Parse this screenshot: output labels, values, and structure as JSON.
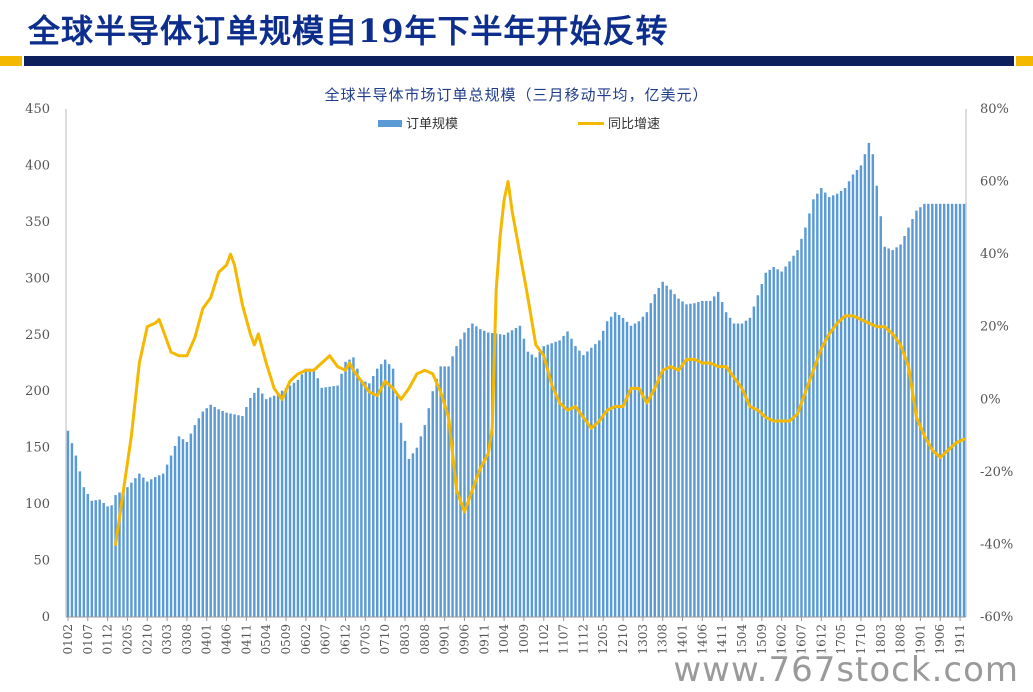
{
  "slide": {
    "title": "全球半导体订单规模自19年下半年开始反转",
    "watermark": "www.767stock.com",
    "accent_gold": "#f5b800",
    "accent_navy": "#0d1f5c"
  },
  "chart_data": {
    "type": "bar",
    "title": "全球半导体市场订单总规模（三月移动平均，亿美元）",
    "left_axis": {
      "min": 0,
      "max": 450,
      "ticks": [
        "0",
        "50",
        "100",
        "150",
        "200",
        "250",
        "300",
        "350",
        "400",
        "450"
      ]
    },
    "right_axis": {
      "min": -60,
      "max": 80,
      "ticks": [
        "-60%",
        "-40%",
        "-20%",
        "0%",
        "20%",
        "40%",
        "60%",
        "80%"
      ]
    },
    "x_tick_labels": [
      "0102",
      "0107",
      "0112",
      "0205",
      "0210",
      "0303",
      "0308",
      "0401",
      "0406",
      "0411",
      "0504",
      "0509",
      "0602",
      "0607",
      "0612",
      "0705",
      "0710",
      "0803",
      "0808",
      "0901",
      "0906",
      "0911",
      "1004",
      "1009",
      "1102",
      "1107",
      "1112",
      "1205",
      "1210",
      "1303",
      "1308",
      "1401",
      "1406",
      "1411",
      "1504",
      "1509",
      "1602",
      "1607",
      "1612",
      "1705",
      "1710",
      "1803",
      "1808",
      "1901",
      "1906",
      "1911"
    ],
    "legend": {
      "position": "top-center"
    },
    "series": [
      {
        "name": "订单规模",
        "color": "#5b9bd5",
        "axis": "left",
        "type": "bar",
        "anchors": [
          [
            0,
            165
          ],
          [
            2,
            143
          ],
          [
            4,
            115
          ],
          [
            6,
            103
          ],
          [
            8,
            104
          ],
          [
            10,
            98
          ],
          [
            11,
            99
          ],
          [
            12,
            108
          ],
          [
            15,
            115
          ],
          [
            18,
            127
          ],
          [
            20,
            120
          ],
          [
            22,
            124
          ],
          [
            24,
            127
          ],
          [
            26,
            143
          ],
          [
            28,
            160
          ],
          [
            30,
            155
          ],
          [
            32,
            170
          ],
          [
            34,
            182
          ],
          [
            36,
            188
          ],
          [
            38,
            184
          ],
          [
            40,
            181
          ],
          [
            44,
            178
          ],
          [
            46,
            194
          ],
          [
            48,
            203
          ],
          [
            50,
            193
          ],
          [
            52,
            196
          ],
          [
            56,
            205
          ],
          [
            58,
            210
          ],
          [
            60,
            220
          ],
          [
            62,
            220
          ],
          [
            64,
            203
          ],
          [
            68,
            205
          ],
          [
            70,
            226
          ],
          [
            72,
            230
          ],
          [
            74,
            210
          ],
          [
            76,
            207
          ],
          [
            78,
            220
          ],
          [
            80,
            228
          ],
          [
            82,
            220
          ],
          [
            84,
            172
          ],
          [
            86,
            140
          ],
          [
            88,
            150
          ],
          [
            90,
            170
          ],
          [
            92,
            200
          ],
          [
            94,
            222
          ],
          [
            96,
            222
          ],
          [
            98,
            240
          ],
          [
            100,
            252
          ],
          [
            102,
            260
          ],
          [
            104,
            255
          ],
          [
            106,
            252
          ],
          [
            110,
            250
          ],
          [
            114,
            258
          ],
          [
            116,
            235
          ],
          [
            118,
            230
          ],
          [
            120,
            240
          ],
          [
            124,
            245
          ],
          [
            126,
            253
          ],
          [
            128,
            240
          ],
          [
            130,
            232
          ],
          [
            134,
            245
          ],
          [
            136,
            262
          ],
          [
            138,
            270
          ],
          [
            140,
            265
          ],
          [
            142,
            258
          ],
          [
            144,
            262
          ],
          [
            146,
            270
          ],
          [
            148,
            286
          ],
          [
            150,
            297
          ],
          [
            152,
            290
          ],
          [
            154,
            282
          ],
          [
            156,
            277
          ],
          [
            158,
            278
          ],
          [
            160,
            280
          ],
          [
            162,
            280
          ],
          [
            164,
            288
          ],
          [
            166,
            270
          ],
          [
            168,
            260
          ],
          [
            170,
            260
          ],
          [
            172,
            265
          ],
          [
            174,
            285
          ],
          [
            176,
            305
          ],
          [
            178,
            310
          ],
          [
            180,
            306
          ],
          [
            182,
            315
          ],
          [
            184,
            325
          ],
          [
            186,
            345
          ],
          [
            188,
            370
          ],
          [
            190,
            380
          ],
          [
            192,
            372
          ],
          [
            194,
            375
          ],
          [
            196,
            380
          ],
          [
            198,
            392
          ],
          [
            200,
            400
          ],
          [
            202,
            420
          ],
          [
            203,
            410
          ],
          [
            204,
            382
          ],
          [
            206,
            328
          ],
          [
            208,
            325
          ],
          [
            210,
            330
          ],
          [
            212,
            345
          ],
          [
            214,
            360
          ],
          [
            216,
            366
          ]
        ]
      },
      {
        "name": "同比增速",
        "color": "#f5b800",
        "axis": "right",
        "type": "line",
        "anchors": [
          [
            12,
            -40
          ],
          [
            14,
            -25
          ],
          [
            16,
            -10
          ],
          [
            18,
            10
          ],
          [
            20,
            20
          ],
          [
            22,
            21
          ],
          [
            23,
            22
          ],
          [
            24,
            19
          ],
          [
            26,
            13
          ],
          [
            28,
            12
          ],
          [
            30,
            12
          ],
          [
            32,
            17
          ],
          [
            34,
            25
          ],
          [
            36,
            28
          ],
          [
            38,
            35
          ],
          [
            40,
            37
          ],
          [
            41,
            40
          ],
          [
            42,
            37
          ],
          [
            44,
            26
          ],
          [
            46,
            18
          ],
          [
            47,
            15
          ],
          [
            48,
            18
          ],
          [
            50,
            10
          ],
          [
            52,
            3
          ],
          [
            54,
            0
          ],
          [
            56,
            5
          ],
          [
            58,
            7
          ],
          [
            60,
            8
          ],
          [
            62,
            8
          ],
          [
            64,
            10
          ],
          [
            66,
            12
          ],
          [
            68,
            9
          ],
          [
            70,
            8
          ],
          [
            71,
            10
          ],
          [
            72,
            8
          ],
          [
            74,
            5
          ],
          [
            76,
            2
          ],
          [
            78,
            1
          ],
          [
            80,
            5
          ],
          [
            82,
            3
          ],
          [
            84,
            0
          ],
          [
            86,
            3
          ],
          [
            88,
            7
          ],
          [
            90,
            8
          ],
          [
            92,
            7
          ],
          [
            94,
            2
          ],
          [
            96,
            -5
          ],
          [
            98,
            -25
          ],
          [
            100,
            -31
          ],
          [
            102,
            -25
          ],
          [
            104,
            -19
          ],
          [
            106,
            -15
          ],
          [
            107,
            -8
          ],
          [
            108,
            30
          ],
          [
            109,
            45
          ],
          [
            110,
            55
          ],
          [
            111,
            60
          ],
          [
            112,
            52
          ],
          [
            114,
            40
          ],
          [
            116,
            28
          ],
          [
            118,
            15
          ],
          [
            120,
            12
          ],
          [
            122,
            4
          ],
          [
            124,
            -1
          ],
          [
            126,
            -3
          ],
          [
            128,
            -2
          ],
          [
            130,
            -5
          ],
          [
            132,
            -8
          ],
          [
            134,
            -6
          ],
          [
            136,
            -3
          ],
          [
            138,
            -2
          ],
          [
            140,
            -2
          ],
          [
            142,
            3
          ],
          [
            144,
            3
          ],
          [
            146,
            -1
          ],
          [
            148,
            3
          ],
          [
            150,
            8
          ],
          [
            152,
            9
          ],
          [
            154,
            8
          ],
          [
            156,
            11
          ],
          [
            158,
            11
          ],
          [
            160,
            10
          ],
          [
            162,
            10
          ],
          [
            164,
            9
          ],
          [
            166,
            9
          ],
          [
            168,
            6
          ],
          [
            170,
            3
          ],
          [
            172,
            -2
          ],
          [
            174,
            -3
          ],
          [
            176,
            -5
          ],
          [
            178,
            -6
          ],
          [
            180,
            -6
          ],
          [
            182,
            -6
          ],
          [
            184,
            -4
          ],
          [
            186,
            2
          ],
          [
            188,
            8
          ],
          [
            190,
            14
          ],
          [
            192,
            18
          ],
          [
            194,
            21
          ],
          [
            196,
            23
          ],
          [
            198,
            23
          ],
          [
            200,
            22
          ],
          [
            202,
            21
          ],
          [
            204,
            20
          ],
          [
            206,
            20
          ],
          [
            208,
            18
          ],
          [
            210,
            15
          ],
          [
            212,
            9
          ],
          [
            214,
            -5
          ],
          [
            216,
            -10
          ],
          [
            218,
            -14
          ],
          [
            220,
            -16
          ],
          [
            222,
            -14
          ],
          [
            224,
            -12
          ],
          [
            226,
            -11
          ]
        ]
      }
    ]
  }
}
